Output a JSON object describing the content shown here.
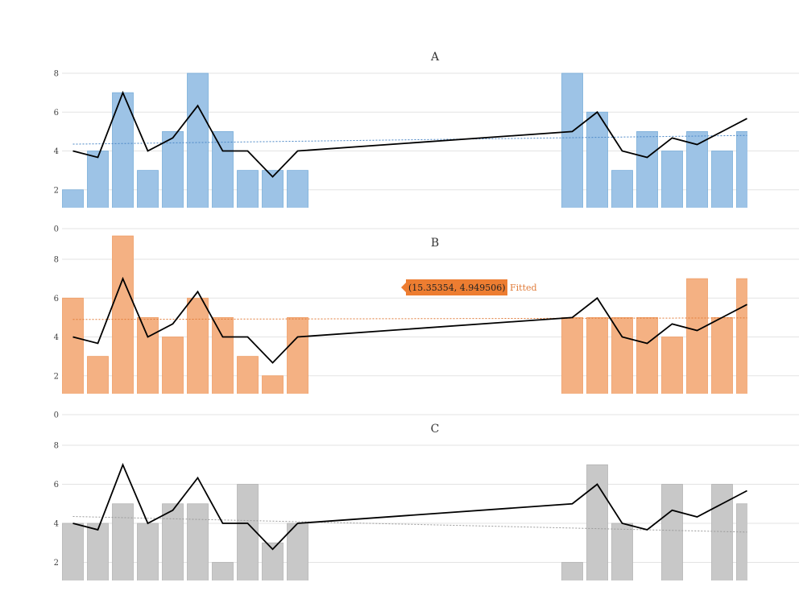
{
  "colors": {
    "A": "#9dc3e6",
    "A_stroke": "#7aaed9",
    "A_trend": "#4a86c5",
    "B": "#f4b183",
    "B_stroke": "#ef9e66",
    "B_trend": "#e07b39",
    "C": "#c8c8c8",
    "C_stroke": "#b4b4b4",
    "C_trend": "#9a9a9a",
    "line": "#000000",
    "grid": "#e3e3e3",
    "tooltip_bg": "#ed7d31"
  },
  "tooltip": {
    "text": "(15.35354, 4.949506)",
    "label": "Fitted"
  },
  "chart_data": [
    {
      "type": "bar",
      "title": "A",
      "ylim": [
        0,
        8
      ],
      "yticks": [
        "0",
        "2",
        "4",
        "6",
        "8"
      ],
      "x": [
        0,
        1,
        2,
        3,
        4,
        5,
        6,
        7,
        8,
        9,
        20,
        21,
        22,
        23,
        24,
        25,
        26,
        27
      ],
      "bars": [
        2,
        4,
        7,
        3,
        5,
        8,
        5,
        3,
        3,
        3,
        8,
        6,
        3,
        5,
        4,
        5,
        4,
        5
      ],
      "line": [
        4,
        3.67,
        7,
        4,
        4.67,
        6.33,
        4,
        4,
        2.67,
        4,
        5,
        6,
        4,
        3.67,
        4.67,
        4.33,
        5,
        5.67
      ],
      "trend": [
        4.35,
        4.8
      ],
      "grid": true
    },
    {
      "type": "bar",
      "title": "B",
      "ylim": [
        0,
        8
      ],
      "yticks": [
        "0",
        "2",
        "4",
        "6",
        "8"
      ],
      "x": [
        0,
        1,
        2,
        3,
        4,
        5,
        6,
        7,
        8,
        9,
        20,
        21,
        22,
        23,
        24,
        25,
        26,
        27
      ],
      "bars": [
        6,
        3,
        9.2,
        5,
        4,
        6,
        5,
        3,
        2,
        5,
        5,
        5,
        5,
        5,
        4,
        7,
        5,
        7
      ],
      "line": [
        4,
        3.67,
        7,
        4,
        4.67,
        6.33,
        4,
        4,
        2.67,
        4,
        5,
        6,
        4,
        3.67,
        4.67,
        4.33,
        5,
        5.67
      ],
      "trend": [
        4.9,
        4.98
      ],
      "grid": true
    },
    {
      "type": "bar",
      "title": "C",
      "ylim": [
        0,
        8
      ],
      "yticks": [
        "2",
        "4",
        "6",
        "8"
      ],
      "x": [
        0,
        1,
        2,
        3,
        4,
        5,
        6,
        7,
        8,
        9,
        20,
        21,
        22,
        23,
        24,
        25,
        26,
        27
      ],
      "bars": [
        4,
        4,
        5,
        4,
        5,
        5,
        2,
        6,
        3,
        4,
        2,
        7,
        4,
        0,
        6,
        0,
        6,
        5
      ],
      "line": [
        4,
        3.67,
        7,
        4,
        4.67,
        6.33,
        4,
        4,
        2.67,
        4,
        5,
        6,
        4,
        3.67,
        4.67,
        4.33,
        5,
        5.67
      ],
      "trend": [
        4.35,
        3.55
      ],
      "grid": true
    }
  ]
}
